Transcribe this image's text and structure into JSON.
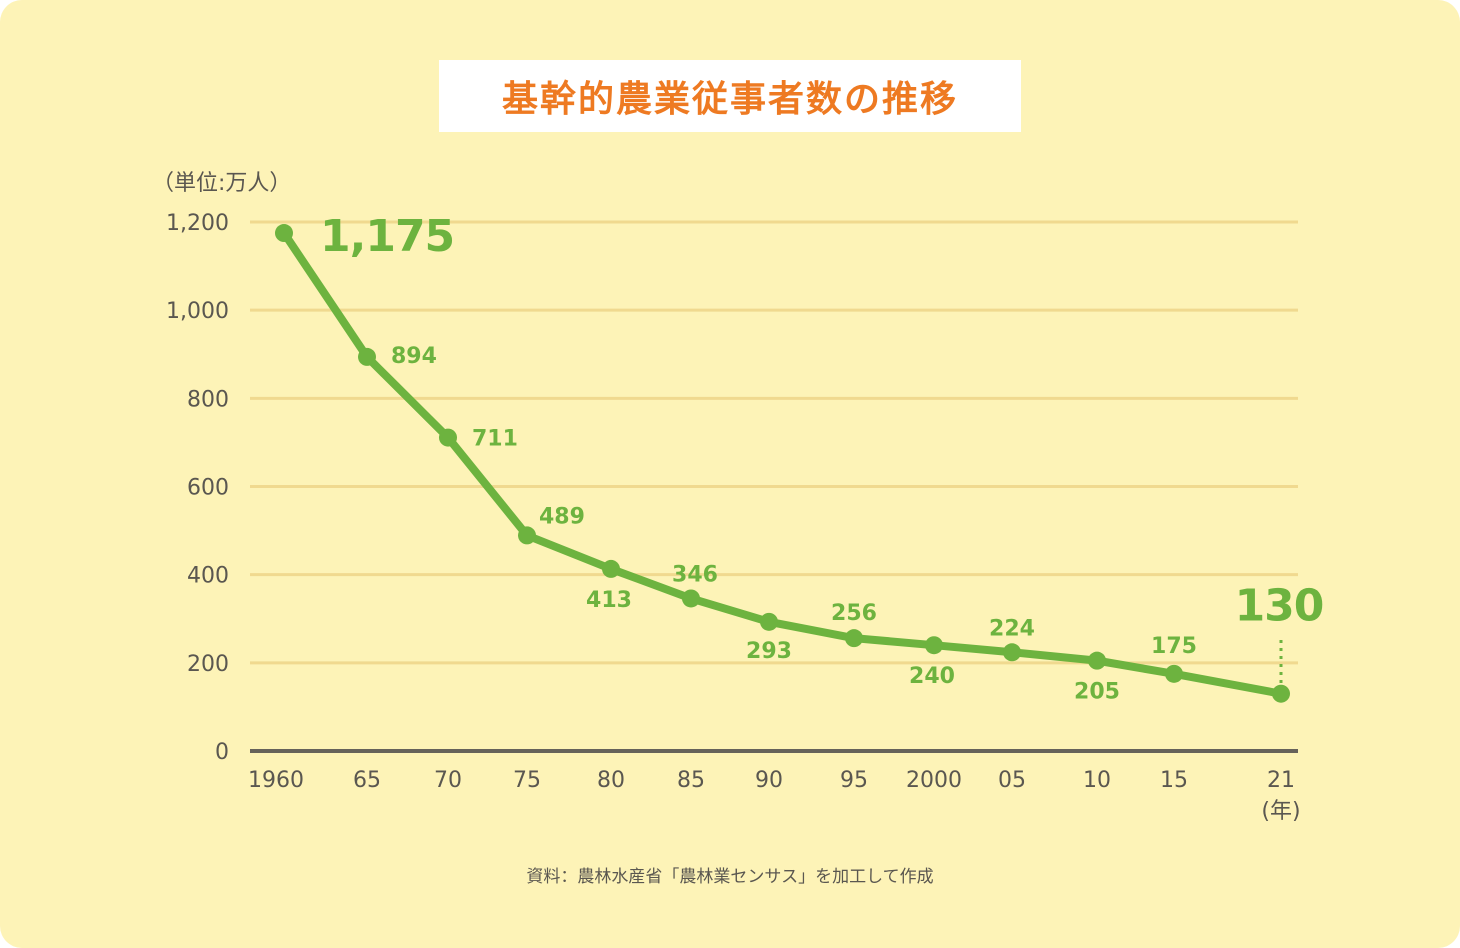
{
  "title": "基幹的農業従事者数の推移",
  "unit_label": "（単位:万人）",
  "x_unit_label": "(年)",
  "source": "資料：農林水産省「農林業センサス」を加工して作成",
  "colors": {
    "background": "#fdf3b7",
    "title": "#ee7a22",
    "line": "#6db33f",
    "grid": "#f0d98f",
    "axis": "#66625a",
    "text": "#5a5750"
  },
  "chart_data": {
    "type": "line",
    "title": "基幹的農業従事者数の推移",
    "xlabel": "(年)",
    "ylabel": "（単位:万人）",
    "ylim": [
      0,
      1200
    ],
    "yticks": [
      0,
      200,
      400,
      600,
      800,
      1000,
      1200
    ],
    "ytick_labels": [
      "0",
      "200",
      "400",
      "600",
      "800",
      "1,000",
      "1,200"
    ],
    "grid": true,
    "categories": [
      "1960",
      "65",
      "70",
      "75",
      "80",
      "85",
      "90",
      "95",
      "2000",
      "05",
      "10",
      "15",
      "21"
    ],
    "years": [
      1960,
      1965,
      1970,
      1975,
      1980,
      1985,
      1990,
      1995,
      2000,
      2005,
      2010,
      2015,
      2021
    ],
    "series": [
      {
        "name": "基幹的農業従事者数",
        "values": [
          1175,
          894,
          711,
          489,
          413,
          346,
          293,
          256,
          240,
          224,
          205,
          175,
          130
        ]
      }
    ],
    "data_labels": [
      "1,175",
      "894",
      "711",
      "489",
      "413",
      "346",
      "293",
      "256",
      "240",
      "224",
      "205",
      "175",
      "130"
    ],
    "highlighted": [
      "1,175",
      "130"
    ],
    "source": "資料：農林水産省「農林業センサス」を加工して作成"
  }
}
